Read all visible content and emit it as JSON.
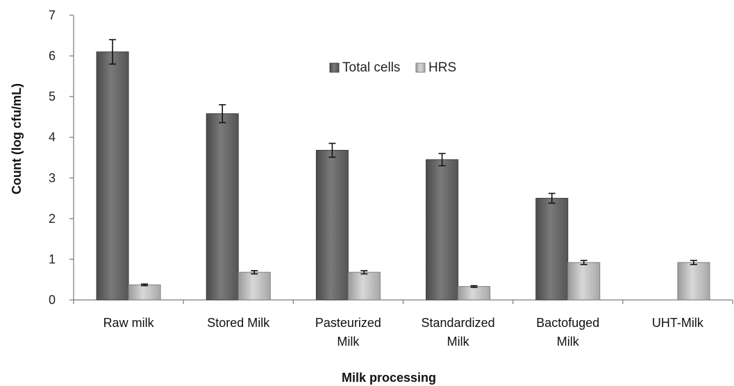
{
  "chart_data": {
    "type": "bar",
    "title": "",
    "xlabel": "Milk processing",
    "ylabel": "Count (log cfu/mL)",
    "ylim": [
      0,
      7
    ],
    "yticks": [
      0,
      1,
      2,
      3,
      4,
      5,
      6,
      7
    ],
    "categories": [
      [
        "Raw milk"
      ],
      [
        "Stored Milk"
      ],
      [
        "Pasteurized",
        "Milk"
      ],
      [
        "Standardized",
        "Milk"
      ],
      [
        "Bactofuged",
        "Milk"
      ],
      [
        "UHT-Milk"
      ]
    ],
    "series": [
      {
        "name": "Total cells",
        "color": "#6b6b6b",
        "values": [
          6.1,
          4.58,
          3.68,
          3.45,
          2.5,
          null
        ],
        "errors": [
          0.3,
          0.22,
          0.17,
          0.15,
          0.12,
          null
        ]
      },
      {
        "name": "HRS",
        "color": "#bdbdbd",
        "values": [
          0.37,
          0.68,
          0.68,
          0.33,
          0.92,
          0.92
        ],
        "errors": [
          0.02,
          0.04,
          0.04,
          0.02,
          0.05,
          0.05
        ]
      }
    ],
    "legend_position": "top-center",
    "grid": false
  }
}
